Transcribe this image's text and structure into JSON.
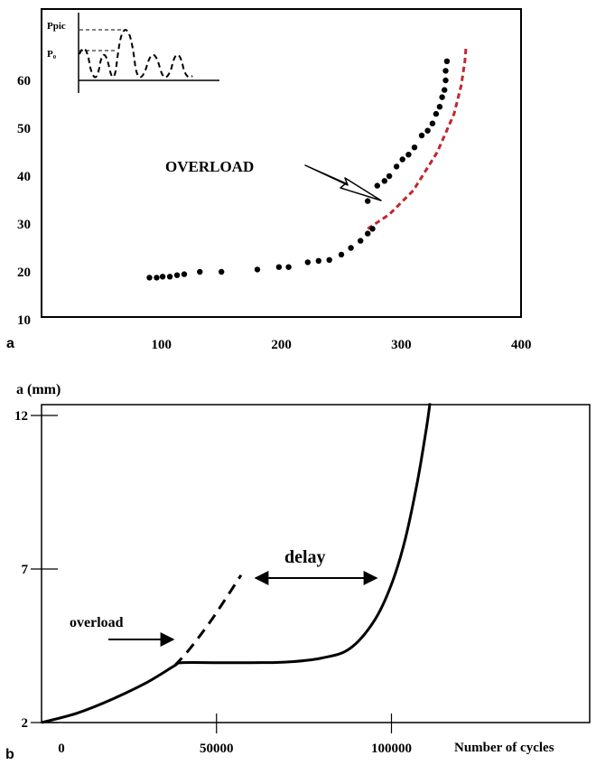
{
  "chart_data": [
    {
      "panel_label": "a",
      "type": "scatter",
      "xlim": [
        0,
        400
      ],
      "ylim": [
        10,
        70
      ],
      "x_ticks": [
        100,
        200,
        300,
        400
      ],
      "y_ticks": [
        10,
        20,
        30,
        40,
        50,
        60
      ],
      "grid": false,
      "series": [
        {
          "style": "dots",
          "color": "#000000",
          "points": [
            [
              90,
              18.8
            ],
            [
              96,
              18.8
            ],
            [
              101,
              19
            ],
            [
              107,
              19
            ],
            [
              113,
              19.3
            ],
            [
              119,
              19.5
            ],
            [
              132,
              20
            ],
            [
              150,
              20
            ],
            [
              180,
              20.5
            ],
            [
              198,
              21
            ],
            [
              206,
              21
            ],
            [
              222,
              22
            ],
            [
              231,
              22.3
            ],
            [
              240,
              22.5
            ],
            [
              250,
              23.6
            ],
            [
              258,
              25
            ],
            [
              266,
              26.5
            ],
            [
              272,
              28
            ],
            [
              276,
              29
            ],
            [
              272,
              34.8
            ],
            [
              280,
              38
            ],
            [
              286,
              39
            ],
            [
              290,
              40
            ],
            [
              296,
              42
            ],
            [
              301,
              43.5
            ],
            [
              306,
              44.5
            ],
            [
              311,
              46
            ],
            [
              317,
              48.5
            ],
            [
              322,
              49.5
            ],
            [
              326,
              51
            ],
            [
              329,
              53
            ],
            [
              332,
              54.5
            ],
            [
              334,
              56.5
            ],
            [
              336,
              58
            ],
            [
              337,
              60
            ],
            [
              337,
              62
            ],
            [
              338,
              64
            ]
          ]
        },
        {
          "style": "dashed",
          "color": "#c0272d",
          "points": [
            [
              272,
              29
            ],
            [
              290,
              32
            ],
            [
              310,
              37
            ],
            [
              330,
              45
            ],
            [
              344,
              53
            ],
            [
              350,
              59
            ],
            [
              353,
              64
            ],
            [
              354,
              67
            ]
          ]
        }
      ],
      "annotations": [
        {
          "text": "OVERLOAD",
          "target": [
            272,
            35
          ]
        }
      ],
      "inset": {
        "labels": [
          "Ppic",
          "P₀"
        ]
      }
    },
    {
      "panel_label": "b",
      "type": "line",
      "ylabel": "a (mm)",
      "xlabel": "Number of cycles",
      "xlim": [
        0,
        140000
      ],
      "ylim": [
        2,
        12.4
      ],
      "x_ticks": [
        0,
        50000,
        100000
      ],
      "y_ticks": [
        2,
        7,
        12
      ],
      "grid": false,
      "series": [
        {
          "style": "solid",
          "color": "#000000",
          "points": [
            [
              0,
              2
            ],
            [
              10000,
              2.3
            ],
            [
              20000,
              2.75
            ],
            [
              30000,
              3.3
            ],
            [
              38000,
              3.85
            ],
            [
              40000,
              3.95
            ],
            [
              50000,
              3.95
            ],
            [
              60000,
              3.95
            ],
            [
              70000,
              3.97
            ],
            [
              80000,
              4.1
            ],
            [
              88000,
              4.4
            ],
            [
              95000,
              5.3
            ],
            [
              100000,
              6.5
            ],
            [
              104000,
              8
            ],
            [
              107500,
              9.9
            ],
            [
              110000,
              11.6
            ],
            [
              111000,
              12.4
            ]
          ]
        },
        {
          "style": "dashed",
          "color": "#000000",
          "points": [
            [
              38000,
              3.85
            ],
            [
              42000,
              4.35
            ],
            [
              48000,
              5.25
            ],
            [
              53000,
              6.1
            ],
            [
              57000,
              6.8
            ]
          ]
        }
      ],
      "annotations": [
        {
          "text": "overload",
          "target": [
            38500,
            3.9
          ]
        },
        {
          "text": "delay",
          "span": [
            58000,
            95000
          ],
          "y": 6.7
        }
      ]
    }
  ]
}
